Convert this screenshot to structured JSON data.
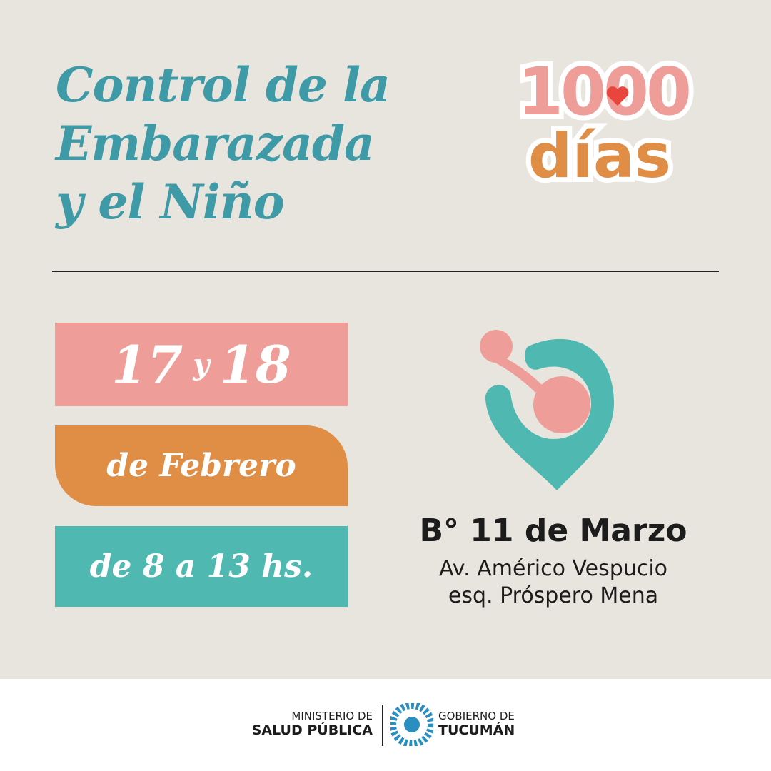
{
  "title": {
    "lines": [
      "Control de la",
      "Embarazada",
      "y el Niño"
    ]
  },
  "logo": {
    "number": "1000",
    "word": "días"
  },
  "schedule": {
    "day_first": "17",
    "conjunction": "y",
    "day_second": "18",
    "month": "de Febrero",
    "hours": "de 8 a 13 hs."
  },
  "location": {
    "neighborhood": "B° 11 de Marzo",
    "street": "Av. Américo Vespucio",
    "corner": "esq. Próspero Mena"
  },
  "footer": {
    "ministry_line1": "MINISTERIO DE",
    "ministry_line2": "SALUD PÚBLICA",
    "government_line1": "GOBIERNO DE",
    "government_line2": "TUCUMÁN"
  }
}
